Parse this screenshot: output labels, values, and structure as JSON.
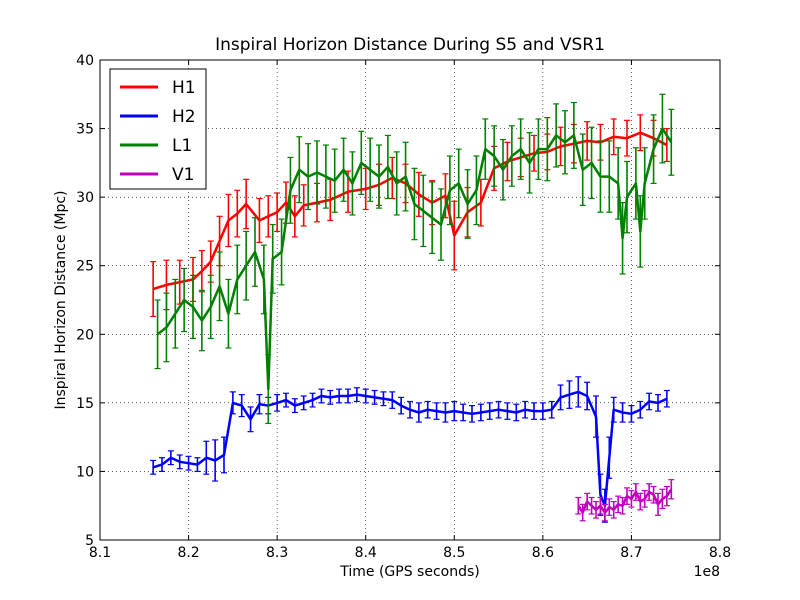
{
  "chart_data": {
    "type": "line",
    "title": "Inspiral Horizon Distance During S5 and VSR1",
    "xlabel": "Time (GPS seconds)",
    "ylabel": "Inspiral Horizon Distance (Mpc)",
    "x_offset_label": "1e8",
    "xlim": [
      8.1,
      8.8
    ],
    "ylim": [
      5,
      40
    ],
    "xticks": [
      8.1,
      8.2,
      8.3,
      8.4,
      8.5,
      8.6,
      8.7,
      8.8
    ],
    "xtick_labels": [
      "8.1",
      "8.2",
      "8.3",
      "8.4",
      "8.5",
      "8.6",
      "8.7",
      "8.8"
    ],
    "yticks": [
      5,
      10,
      15,
      20,
      25,
      30,
      35,
      40
    ],
    "ytick_labels": [
      "5",
      "10",
      "15",
      "20",
      "25",
      "30",
      "35",
      "40"
    ],
    "grid": true,
    "legend_position": "top-left",
    "series": [
      {
        "name": "H1",
        "color": "#ff0000",
        "x": [
          8.16,
          8.175,
          8.19,
          8.205,
          8.215,
          8.225,
          8.235,
          8.245,
          8.255,
          8.265,
          8.28,
          8.29,
          8.3,
          8.31,
          8.32,
          8.33,
          8.345,
          8.36,
          8.38,
          8.4,
          8.415,
          8.43,
          8.445,
          8.46,
          8.475,
          8.49,
          8.5,
          8.515,
          8.53,
          8.545,
          8.56,
          8.575,
          8.59,
          8.605,
          8.62,
          8.635,
          8.65,
          8.665,
          8.68,
          8.695,
          8.71,
          8.725,
          8.74
        ],
        "values": [
          23.3,
          23.6,
          23.8,
          24.0,
          24.6,
          25.3,
          26.8,
          28.3,
          28.8,
          29.5,
          28.3,
          28.6,
          28.9,
          29.6,
          28.6,
          29.4,
          29.6,
          29.8,
          30.4,
          30.6,
          30.9,
          31.4,
          31.0,
          30.2,
          29.6,
          30.1,
          27.2,
          28.9,
          29.6,
          32.1,
          32.6,
          32.9,
          33.2,
          33.3,
          33.7,
          33.9,
          34.1,
          34.0,
          34.4,
          34.3,
          34.7,
          34.3,
          33.8
        ],
        "errors": [
          2.0,
          1.8,
          1.6,
          1.6,
          1.5,
          1.5,
          1.8,
          1.9,
          1.7,
          1.8,
          1.6,
          1.5,
          1.4,
          1.5,
          1.5,
          1.5,
          1.4,
          1.5,
          1.5,
          1.5,
          1.5,
          1.5,
          1.4,
          1.6,
          1.6,
          1.6,
          2.5,
          1.8,
          1.7,
          1.6,
          1.4,
          1.4,
          1.3,
          1.3,
          1.4,
          1.4,
          1.4,
          1.3,
          1.3,
          1.3,
          1.3,
          1.3,
          1.2
        ]
      },
      {
        "name": "H2",
        "color": "#0000ff",
        "x": [
          8.16,
          8.17,
          8.18,
          8.19,
          8.2,
          8.21,
          8.22,
          8.23,
          8.24,
          8.25,
          8.26,
          8.27,
          8.28,
          8.29,
          8.3,
          8.31,
          8.32,
          8.33,
          8.34,
          8.35,
          8.36,
          8.37,
          8.38,
          8.39,
          8.4,
          8.41,
          8.42,
          8.43,
          8.44,
          8.45,
          8.46,
          8.47,
          8.48,
          8.49,
          8.5,
          8.51,
          8.52,
          8.53,
          8.54,
          8.55,
          8.56,
          8.57,
          8.58,
          8.59,
          8.6,
          8.61,
          8.62,
          8.63,
          8.64,
          8.65,
          8.66,
          8.665,
          8.67,
          8.675,
          8.68,
          8.69,
          8.7,
          8.71,
          8.72,
          8.73,
          8.74
        ],
        "values": [
          10.3,
          10.5,
          11.0,
          10.7,
          10.6,
          10.5,
          11.0,
          10.8,
          11.2,
          15.0,
          14.8,
          13.8,
          14.9,
          14.8,
          15.0,
          15.2,
          14.8,
          15.0,
          15.2,
          15.5,
          15.4,
          15.5,
          15.5,
          15.6,
          15.5,
          15.4,
          15.3,
          15.2,
          14.8,
          14.5,
          14.3,
          14.5,
          14.4,
          14.3,
          14.4,
          14.3,
          14.2,
          14.3,
          14.4,
          14.5,
          14.4,
          14.3,
          14.5,
          14.4,
          14.4,
          14.5,
          15.4,
          15.6,
          15.8,
          15.5,
          14.0,
          8.3,
          7.5,
          11.0,
          14.5,
          14.3,
          14.2,
          14.5,
          15.1,
          15.0,
          15.3
        ],
        "errors": [
          0.5,
          0.5,
          0.5,
          0.5,
          0.5,
          0.5,
          1.2,
          1.5,
          1.3,
          0.8,
          0.8,
          0.9,
          0.7,
          0.6,
          0.6,
          0.5,
          0.5,
          0.5,
          0.5,
          0.5,
          0.5,
          0.5,
          0.5,
          0.5,
          0.5,
          0.5,
          0.5,
          0.6,
          0.6,
          0.6,
          0.7,
          0.6,
          0.6,
          0.7,
          0.7,
          0.6,
          0.6,
          0.6,
          0.6,
          0.6,
          0.6,
          0.6,
          0.6,
          0.6,
          0.6,
          0.6,
          0.9,
          1.0,
          1.1,
          1.0,
          1.5,
          1.5,
          1.2,
          1.5,
          0.9,
          0.7,
          0.6,
          0.6,
          0.6,
          0.6,
          0.6
        ]
      },
      {
        "name": "L1",
        "color": "#008000",
        "x": [
          8.165,
          8.175,
          8.185,
          8.195,
          8.205,
          8.215,
          8.225,
          8.235,
          8.245,
          8.255,
          8.265,
          8.275,
          8.285,
          8.29,
          8.295,
          8.305,
          8.315,
          8.325,
          8.335,
          8.345,
          8.355,
          8.365,
          8.375,
          8.385,
          8.395,
          8.405,
          8.415,
          8.425,
          8.435,
          8.445,
          8.455,
          8.465,
          8.475,
          8.485,
          8.495,
          8.505,
          8.515,
          8.525,
          8.535,
          8.545,
          8.555,
          8.565,
          8.575,
          8.585,
          8.595,
          8.605,
          8.615,
          8.625,
          8.635,
          8.645,
          8.655,
          8.665,
          8.675,
          8.685,
          8.69,
          8.695,
          8.705,
          8.71,
          8.715,
          8.725,
          8.735,
          8.745
        ],
        "values": [
          20.0,
          20.5,
          21.5,
          22.5,
          22.0,
          21.0,
          22.0,
          23.5,
          21.5,
          24.0,
          25.0,
          26.0,
          24.0,
          16.0,
          25.5,
          26.0,
          30.5,
          32.0,
          31.5,
          31.8,
          31.5,
          31.2,
          32.0,
          31.0,
          32.5,
          32.0,
          31.5,
          32.2,
          31.0,
          31.5,
          29.5,
          29.0,
          28.5,
          28.0,
          30.5,
          31.0,
          29.5,
          30.5,
          33.5,
          33.0,
          32.0,
          33.0,
          33.5,
          32.5,
          33.5,
          33.5,
          34.5,
          34.0,
          34.5,
          32.0,
          32.5,
          31.5,
          31.5,
          31.0,
          27.0,
          30.0,
          31.0,
          27.5,
          31.0,
          33.5,
          35.0,
          34.0
        ],
        "errors": [
          2.5,
          2.5,
          2.5,
          2.3,
          2.3,
          2.2,
          2.3,
          2.5,
          2.5,
          2.5,
          2.5,
          2.5,
          2.5,
          2.5,
          2.5,
          2.4,
          2.4,
          2.4,
          2.4,
          2.3,
          2.3,
          2.3,
          2.3,
          2.3,
          2.3,
          2.3,
          2.3,
          2.3,
          2.3,
          2.5,
          2.6,
          2.6,
          2.6,
          2.6,
          2.5,
          2.5,
          2.5,
          2.5,
          2.2,
          2.2,
          2.2,
          2.2,
          2.2,
          2.2,
          2.2,
          2.3,
          2.3,
          2.3,
          2.4,
          2.6,
          2.6,
          2.6,
          2.6,
          2.6,
          2.6,
          2.6,
          2.6,
          2.6,
          2.6,
          2.5,
          2.5,
          2.4
        ]
      },
      {
        "name": "V1",
        "color": "#bf00bf",
        "x": [
          8.64,
          8.645,
          8.65,
          8.655,
          8.66,
          8.665,
          8.67,
          8.675,
          8.68,
          8.685,
          8.69,
          8.695,
          8.7,
          8.705,
          8.71,
          8.715,
          8.72,
          8.725,
          8.73,
          8.735,
          8.74,
          8.745
        ],
        "values": [
          7.5,
          7.0,
          7.8,
          7.5,
          7.2,
          7.5,
          7.0,
          7.4,
          7.2,
          7.6,
          7.5,
          8.2,
          8.0,
          8.5,
          7.8,
          8.0,
          8.5,
          8.3,
          7.6,
          8.0,
          8.2,
          8.7
        ],
        "errors": [
          0.6,
          0.6,
          0.6,
          0.6,
          0.6,
          0.6,
          0.6,
          0.6,
          0.6,
          0.6,
          0.6,
          0.6,
          0.6,
          0.6,
          0.6,
          0.6,
          0.6,
          0.6,
          0.8,
          0.7,
          0.7,
          0.7
        ]
      }
    ]
  }
}
